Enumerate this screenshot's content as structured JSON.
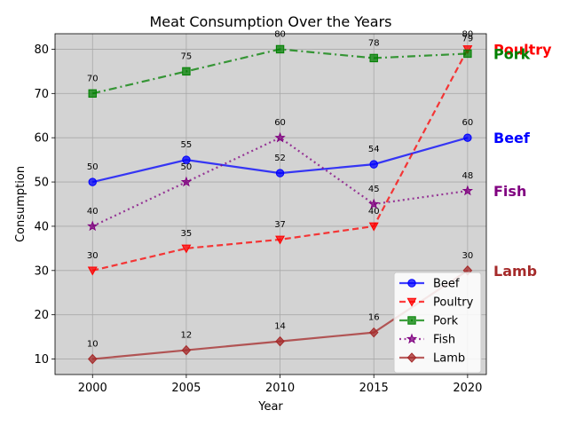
{
  "chart_data": {
    "type": "line",
    "title": "Meat Consumption Over the Years",
    "xlabel": "Year",
    "ylabel": "Consumption",
    "x": [
      2000,
      2005,
      2010,
      2015,
      2020
    ],
    "xticks": [
      "2000",
      "2005",
      "2010",
      "2015",
      "2020"
    ],
    "yticks": [
      "10",
      "20",
      "30",
      "40",
      "50",
      "60",
      "70",
      "80"
    ],
    "xlim": [
      1998,
      2021
    ],
    "ylim": [
      6.5,
      83.5
    ],
    "grid": true,
    "background": "#d3d3d3",
    "legend_position": "lower-right",
    "series": [
      {
        "name": "Beef",
        "values": [
          50,
          55,
          52,
          54,
          60
        ],
        "labels": [
          "50",
          "55",
          "52",
          "54",
          "60"
        ],
        "color": "#0000ff",
        "marker": "circle",
        "linestyle": "solid"
      },
      {
        "name": "Poultry",
        "values": [
          30,
          35,
          37,
          40,
          80
        ],
        "labels": [
          "30",
          "35",
          "37",
          "40",
          "80"
        ],
        "color": "#ff0000",
        "marker": "triangle-down",
        "linestyle": "dashed"
      },
      {
        "name": "Pork",
        "values": [
          70,
          75,
          80,
          78,
          79
        ],
        "labels": [
          "70",
          "75",
          "80",
          "78",
          "79"
        ],
        "color": "#008000",
        "marker": "square",
        "linestyle": "dashdot"
      },
      {
        "name": "Fish",
        "values": [
          40,
          50,
          60,
          45,
          48
        ],
        "labels": [
          "40",
          "50",
          "60",
          "45",
          "48"
        ],
        "color": "#800080",
        "marker": "star",
        "linestyle": "dotted"
      },
      {
        "name": "Lamb",
        "values": [
          10,
          12,
          14,
          16,
          30
        ],
        "labels": [
          "10",
          "12",
          "14",
          "16",
          "30"
        ],
        "color": "#a52a2a",
        "marker": "diamond",
        "linestyle": "solid"
      }
    ]
  }
}
